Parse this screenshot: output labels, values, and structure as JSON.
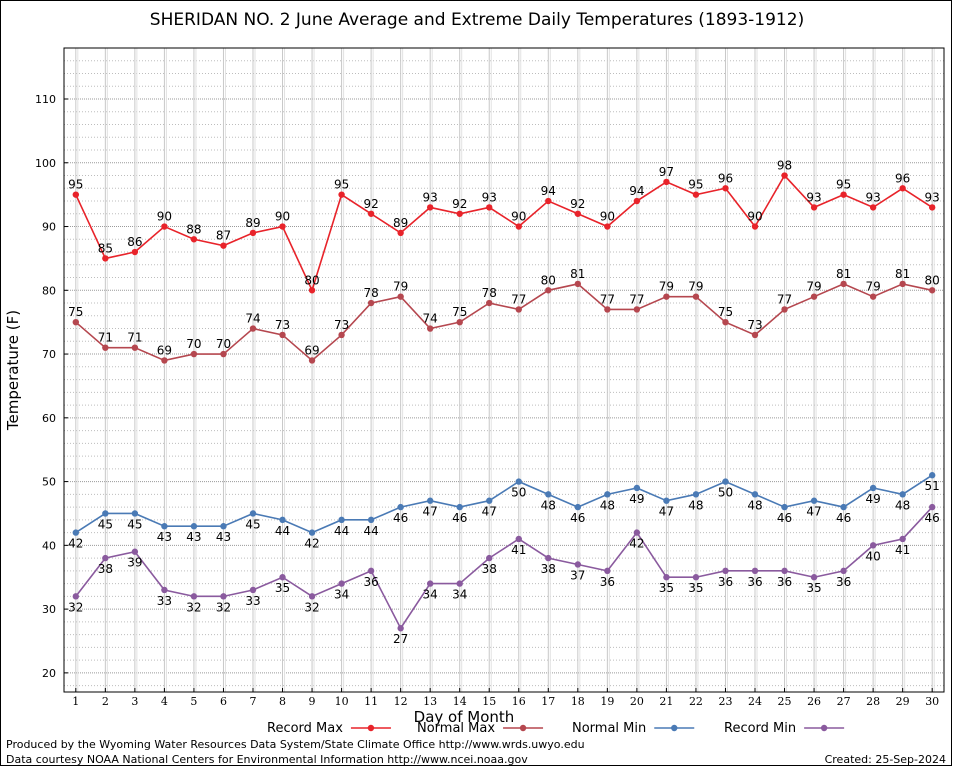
{
  "chart_data": {
    "type": "line",
    "title": "SHERIDAN NO. 2 June Average and Extreme Daily Temperatures (1893-1912)",
    "xlabel": "Day of Month",
    "ylabel": "Temperature (F)",
    "xlim": [
      0.6,
      30.4
    ],
    "ylim": [
      17,
      118
    ],
    "yticks": [
      20,
      30,
      40,
      50,
      60,
      70,
      80,
      90,
      100,
      110
    ],
    "x": [
      1,
      2,
      3,
      4,
      5,
      6,
      7,
      8,
      9,
      10,
      11,
      12,
      13,
      14,
      15,
      16,
      17,
      18,
      19,
      20,
      21,
      22,
      23,
      24,
      25,
      26,
      27,
      28,
      29,
      30
    ],
    "grid": true,
    "legend_position": "bottom",
    "series": [
      {
        "name": "Record Max",
        "color": "#e8232a",
        "values": [
          95,
          85,
          86,
          90,
          88,
          87,
          89,
          90,
          80,
          95,
          92,
          89,
          93,
          92,
          93,
          90,
          94,
          92,
          90,
          94,
          97,
          95,
          96,
          90,
          98,
          93,
          95,
          93,
          96,
          93
        ]
      },
      {
        "name": "Normal Max",
        "color": "#b5474f",
        "values": [
          75,
          71,
          71,
          69,
          70,
          70,
          74,
          73,
          69,
          73,
          78,
          79,
          74,
          75,
          78,
          77,
          80,
          81,
          77,
          77,
          79,
          79,
          75,
          73,
          77,
          79,
          81,
          79,
          81,
          80
        ]
      },
      {
        "name": "Normal Min",
        "color": "#4a7ab5",
        "values": [
          42,
          45,
          45,
          43,
          43,
          43,
          45,
          44,
          42,
          44,
          44,
          46,
          47,
          46,
          47,
          50,
          48,
          46,
          48,
          49,
          47,
          48,
          50,
          48,
          46,
          47,
          46,
          49,
          48,
          51
        ]
      },
      {
        "name": "Record Min",
        "color": "#8a5a9e",
        "values": [
          32,
          38,
          39,
          33,
          32,
          32,
          33,
          35,
          32,
          34,
          36,
          27,
          34,
          34,
          38,
          41,
          38,
          37,
          36,
          42,
          35,
          35,
          36,
          36,
          36,
          35,
          36,
          40,
          41,
          46
        ]
      }
    ]
  },
  "footer": {
    "credit_line_1": "Produced by the Wyoming Water Resources Data System/State Climate Office http://www.wrds.uwyo.edu",
    "credit_line_2": "Data courtesy NOAA National Centers for Environmental Information http://www.ncei.noaa.gov",
    "created": "Created:  25-Sep-2024"
  }
}
